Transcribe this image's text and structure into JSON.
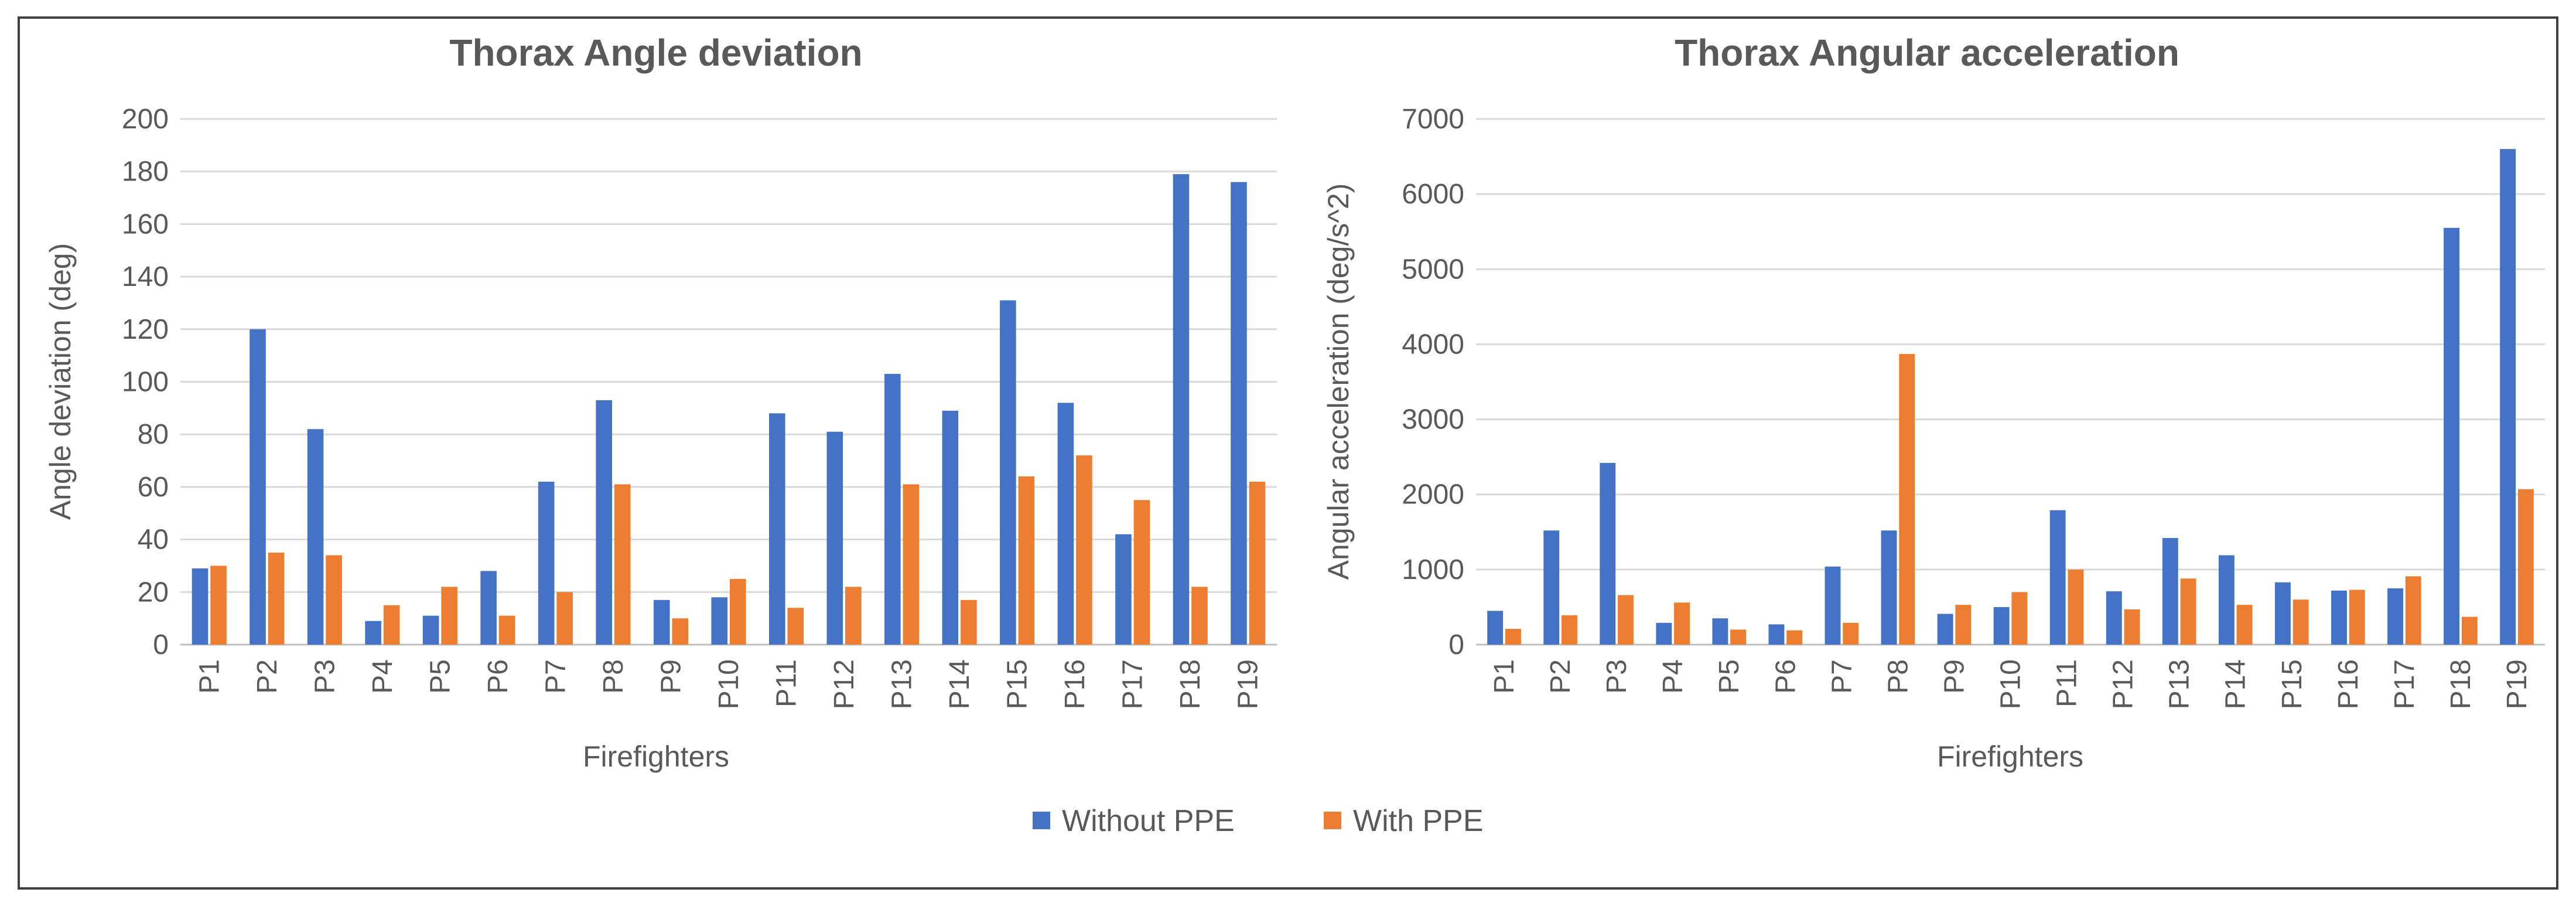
{
  "legend": {
    "series_without": "Without PPE",
    "series_with": "With PPE",
    "color_without": "#4472C4",
    "color_with": "#ED7D31"
  },
  "chart_data": [
    {
      "type": "bar",
      "title": "Thorax Angle deviation",
      "xlabel": "Firefighters",
      "ylabel": "Angle deviation (deg)",
      "ylim": [
        0,
        200
      ],
      "yticks": [
        0,
        20,
        40,
        60,
        80,
        100,
        120,
        140,
        160,
        180,
        200
      ],
      "categories": [
        "P1",
        "P2",
        "P3",
        "P4",
        "P5",
        "P6",
        "P7",
        "P8",
        "P9",
        "P10",
        "P11",
        "P12",
        "P13",
        "P14",
        "P15",
        "P16",
        "P17",
        "P18",
        "P19"
      ],
      "series": [
        {
          "name": "Without PPE",
          "values": [
            29,
            120,
            82,
            9,
            11,
            28,
            62,
            93,
            17,
            18,
            88,
            81,
            103,
            89,
            131,
            92,
            42,
            179,
            176
          ]
        },
        {
          "name": "With PPE",
          "values": [
            30,
            35,
            34,
            15,
            22,
            11,
            20,
            61,
            10,
            25,
            14,
            22,
            61,
            17,
            64,
            72,
            55,
            22,
            62
          ]
        }
      ],
      "grid": true,
      "legend_position": "bottom"
    },
    {
      "type": "bar",
      "title": "Thorax Angular acceleration",
      "xlabel": "Firefighters",
      "ylabel": "Angular acceleration (deg/s^2)",
      "ylim": [
        0,
        7000
      ],
      "yticks": [
        0,
        1000,
        2000,
        3000,
        4000,
        5000,
        6000,
        7000
      ],
      "categories": [
        "P1",
        "P2",
        "P3",
        "P4",
        "P5",
        "P6",
        "P7",
        "P8",
        "P9",
        "P10",
        "P11",
        "P12",
        "P13",
        "P14",
        "P15",
        "P16",
        "P17",
        "P18",
        "P19"
      ],
      "series": [
        {
          "name": "Without PPE",
          "values": [
            450,
            1520,
            2420,
            290,
            350,
            270,
            1040,
            1520,
            410,
            500,
            1790,
            710,
            1420,
            1190,
            830,
            720,
            750,
            5550,
            6600
          ]
        },
        {
          "name": "With PPE",
          "values": [
            210,
            390,
            660,
            560,
            200,
            190,
            290,
            3870,
            530,
            700,
            1000,
            470,
            880,
            530,
            600,
            730,
            910,
            370,
            2070
          ]
        }
      ],
      "grid": true,
      "legend_position": "bottom"
    }
  ]
}
